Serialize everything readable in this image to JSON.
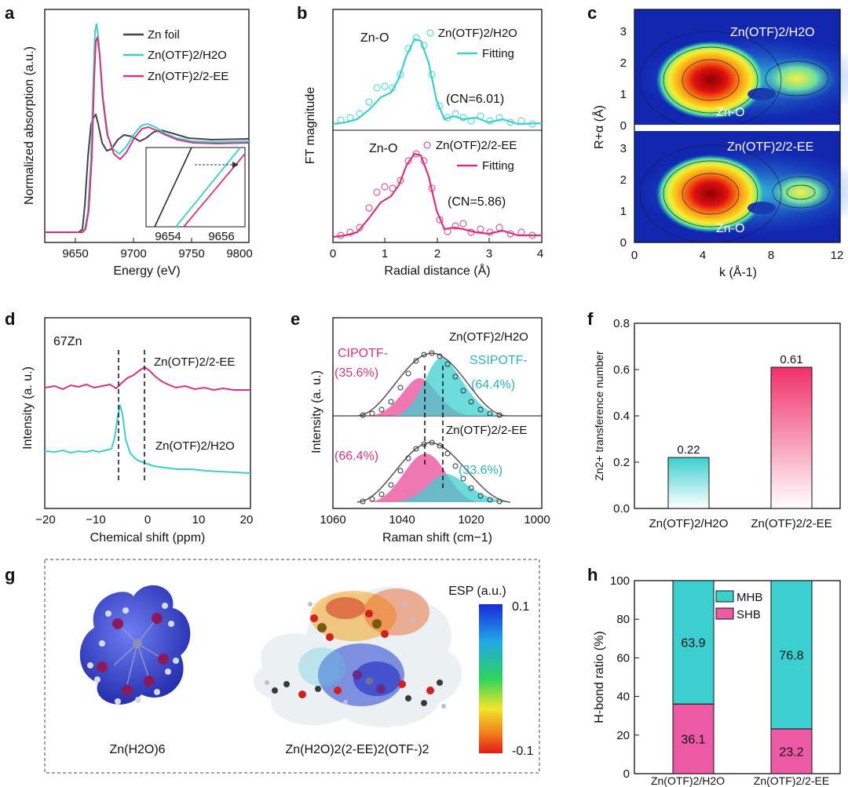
{
  "colors": {
    "zn_foil": "#444444",
    "water": "#3ccfcf",
    "ee": "#d6337f",
    "axis": "#111111"
  },
  "panel_labels": [
    "a",
    "b",
    "c",
    "d",
    "e",
    "f",
    "g",
    "h"
  ],
  "panel_a": {
    "xlabel": "Energy (eV)",
    "ylabel": "Normalized absorption (a.u.)",
    "xticks": [
      "9650",
      "9700",
      "9750",
      "9800"
    ],
    "legend": [
      "Zn foil",
      "Zn(OTF)2/H2O",
      "Zn(OTF)2/2-EE"
    ],
    "inset_ticks": [
      "9654",
      "9656"
    ]
  },
  "panel_b": {
    "xlabel": "Radial distance (Å)",
    "ylabel": "FT magnitude",
    "xticks": [
      "0",
      "1",
      "2",
      "3",
      "4"
    ],
    "top": {
      "bond": "Zn-O",
      "sample": "Zn(OTF)2/H2O",
      "fit": "Fitting",
      "cn": "(CN=6.01)"
    },
    "bottom": {
      "bond": "Zn-O",
      "sample": "Zn(OTF)2/2-EE",
      "fit": "Fitting",
      "cn": "(CN=5.86)"
    }
  },
  "panel_c": {
    "xlabel": "k (Å-1)",
    "ylabel": "R+α (Å)",
    "xticks": [
      "0",
      "4",
      "8",
      "12"
    ],
    "yticks": [
      "0",
      "1",
      "2",
      "3"
    ],
    "top_label": "Zn(OTF)2/H2O",
    "bottom_label": "Zn(OTF)2/2-EE",
    "bond_label": "Zn-O"
  },
  "panel_d": {
    "nucleus": "67Zn",
    "xlabel": "Chemical shift (ppm)",
    "ylabel": "Intensity (a. u.)",
    "xticks": [
      "−20",
      "−10",
      "0",
      "10",
      "20"
    ],
    "label_ee": "Zn(OTF)2/2-EE",
    "label_water": "Zn(OTF)2/H2O"
  },
  "panel_e": {
    "xlabel": "Raman shift (cm−1)",
    "ylabel": "Intensity (a. u.)",
    "xticks": [
      "1060",
      "1040",
      "1020",
      "1000"
    ],
    "top_sample": "Zn(OTF)2/H2O",
    "bottom_sample": "Zn(OTF)2/2-EE",
    "cip_label": "CIPOTF-",
    "ssip_label": "SSIPOTF-",
    "top_cip": "(35.6%)",
    "top_ssip": "(64.4%)",
    "bottom_cip": "(66.4%)",
    "bottom_ssip": "(33.6%)"
  },
  "panel_f": {
    "ylabel": "Zn2+ transference number",
    "chart_data": {
      "type": "bar",
      "categories": [
        "Zn(OTF)2/H2O",
        "Zn(OTF)2/2-EE"
      ],
      "values": [
        0.22,
        0.61
      ],
      "ylim": [
        0.0,
        0.8
      ],
      "yticks": [
        "0.0",
        "0.2",
        "0.4",
        "0.6",
        "0.8"
      ],
      "value_labels": [
        "0.22",
        "0.61"
      ]
    }
  },
  "panel_g": {
    "mol1": "Zn(H2O)6",
    "mol2": "Zn(H2O)2(2-EE)2(OTF-)2",
    "esp_title": "ESP (a.u.)",
    "esp_max": "0.1",
    "esp_min": "-0.1"
  },
  "panel_h": {
    "ylabel": "H-bond ratio (%)",
    "chart_data": {
      "type": "bar",
      "categories": [
        "Zn(OTF)2/H2O",
        "Zn(OTF)2/2-EE"
      ],
      "series": [
        {
          "name": "SHB",
          "values": [
            36.1,
            23.2
          ],
          "labels": [
            "36.1",
            "23.2"
          ]
        },
        {
          "name": "MHB",
          "values": [
            63.9,
            76.8
          ],
          "labels": [
            "63.9",
            "76.8"
          ]
        }
      ],
      "ylim": [
        0,
        100
      ],
      "yticks": [
        "0",
        "20",
        "40",
        "60",
        "80",
        "100"
      ],
      "legend": [
        "MHB",
        "SHB"
      ]
    }
  }
}
